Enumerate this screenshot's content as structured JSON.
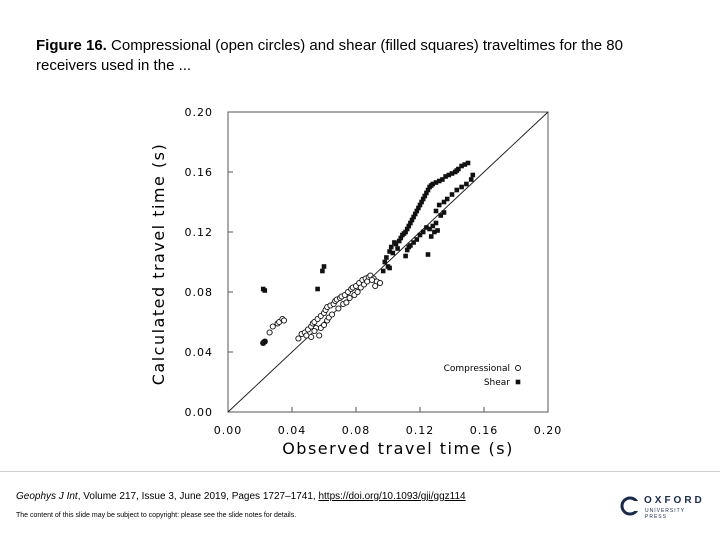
{
  "slide": {
    "title_label": "Figure 16.",
    "title_text": "Compressional (open circles) and shear (filled squares) traveltimes for the 80 receivers used in the ...",
    "citation_journal": "Geophys J Int",
    "citation_text": ", Volume 217, Issue 3, June 2019, Pages 1727–1741, ",
    "citation_link": "https://doi.org/10.1093/gji/ggz114",
    "copyright": "The content of this slide may be subject to copyright: please see the slide notes for details.",
    "logo_line1": "OXFORD",
    "logo_line2": "UNIVERSITY PRESS"
  },
  "chart_data": {
    "type": "scatter",
    "title": "",
    "xlabel": "Observed travel time (s)",
    "ylabel": "Calculated travel time (s)",
    "xlim": [
      0,
      0.2
    ],
    "ylim": [
      0,
      0.2
    ],
    "xticks": [
      "0.00",
      "0.04",
      "0.08",
      "0.12",
      "0.16",
      "0.20"
    ],
    "yticks": [
      "0.00",
      "0.04",
      "0.08",
      "0.12",
      "0.16",
      "0.20"
    ],
    "reference_line": "y = x",
    "legend_position": "bottom-right",
    "series": [
      {
        "name": "Compressional",
        "marker": "open-circle",
        "points": [
          [
            0.022,
            0.046
          ],
          [
            0.023,
            0.047
          ],
          [
            0.026,
            0.053
          ],
          [
            0.028,
            0.057
          ],
          [
            0.031,
            0.059
          ],
          [
            0.032,
            0.06
          ],
          [
            0.034,
            0.062
          ],
          [
            0.035,
            0.061
          ],
          [
            0.044,
            0.049
          ],
          [
            0.046,
            0.052
          ],
          [
            0.048,
            0.053
          ],
          [
            0.05,
            0.055
          ],
          [
            0.052,
            0.057
          ],
          [
            0.053,
            0.059
          ],
          [
            0.054,
            0.06
          ],
          [
            0.056,
            0.062
          ],
          [
            0.058,
            0.064
          ],
          [
            0.06,
            0.066
          ],
          [
            0.061,
            0.068
          ],
          [
            0.062,
            0.07
          ],
          [
            0.064,
            0.071
          ],
          [
            0.066,
            0.072
          ],
          [
            0.067,
            0.074
          ],
          [
            0.068,
            0.075
          ],
          [
            0.07,
            0.076
          ],
          [
            0.071,
            0.077
          ],
          [
            0.073,
            0.078
          ],
          [
            0.075,
            0.08
          ],
          [
            0.077,
            0.082
          ],
          [
            0.078,
            0.083
          ],
          [
            0.08,
            0.084
          ],
          [
            0.082,
            0.086
          ],
          [
            0.084,
            0.088
          ],
          [
            0.086,
            0.089
          ],
          [
            0.088,
            0.09
          ],
          [
            0.089,
            0.091
          ],
          [
            0.091,
            0.089
          ],
          [
            0.093,
            0.087
          ],
          [
            0.095,
            0.086
          ],
          [
            0.058,
            0.056
          ],
          [
            0.06,
            0.058
          ],
          [
            0.062,
            0.061
          ],
          [
            0.057,
            0.051
          ],
          [
            0.055,
            0.056
          ],
          [
            0.054,
            0.054
          ],
          [
            0.063,
            0.063
          ],
          [
            0.065,
            0.065
          ],
          [
            0.069,
            0.069
          ],
          [
            0.072,
            0.072
          ],
          [
            0.052,
            0.05
          ],
          [
            0.074,
            0.073
          ],
          [
            0.076,
            0.076
          ],
          [
            0.079,
            0.078
          ],
          [
            0.081,
            0.08
          ],
          [
            0.083,
            0.083
          ],
          [
            0.085,
            0.085
          ],
          [
            0.087,
            0.087
          ],
          [
            0.09,
            0.088
          ],
          [
            0.092,
            0.084
          ],
          [
            0.049,
            0.051
          ]
        ]
      },
      {
        "name": "Shear",
        "marker": "filled-square",
        "points": [
          [
            0.022,
            0.082
          ],
          [
            0.023,
            0.081
          ],
          [
            0.022,
            0.046
          ],
          [
            0.023,
            0.047
          ],
          [
            0.056,
            0.082
          ],
          [
            0.059,
            0.094
          ],
          [
            0.06,
            0.097
          ],
          [
            0.101,
            0.107
          ],
          [
            0.102,
            0.11
          ],
          [
            0.103,
            0.106
          ],
          [
            0.104,
            0.113
          ],
          [
            0.105,
            0.112
          ],
          [
            0.106,
            0.109
          ],
          [
            0.107,
            0.114
          ],
          [
            0.108,
            0.116
          ],
          [
            0.109,
            0.118
          ],
          [
            0.11,
            0.119
          ],
          [
            0.111,
            0.12
          ],
          [
            0.112,
            0.122
          ],
          [
            0.113,
            0.124
          ],
          [
            0.114,
            0.126
          ],
          [
            0.115,
            0.128
          ],
          [
            0.116,
            0.13
          ],
          [
            0.117,
            0.132
          ],
          [
            0.118,
            0.134
          ],
          [
            0.119,
            0.136
          ],
          [
            0.12,
            0.138
          ],
          [
            0.121,
            0.14
          ],
          [
            0.122,
            0.142
          ],
          [
            0.123,
            0.144
          ],
          [
            0.124,
            0.146
          ],
          [
            0.125,
            0.148
          ],
          [
            0.126,
            0.15
          ],
          [
            0.127,
            0.151
          ],
          [
            0.128,
            0.152
          ],
          [
            0.13,
            0.153
          ],
          [
            0.132,
            0.154
          ],
          [
            0.134,
            0.155
          ],
          [
            0.136,
            0.157
          ],
          [
            0.138,
            0.158
          ],
          [
            0.14,
            0.159
          ],
          [
            0.142,
            0.16
          ],
          [
            0.143,
            0.161
          ],
          [
            0.144,
            0.162
          ],
          [
            0.146,
            0.164
          ],
          [
            0.148,
            0.165
          ],
          [
            0.15,
            0.166
          ],
          [
            0.153,
            0.158
          ],
          [
            0.13,
            0.134
          ],
          [
            0.132,
            0.138
          ],
          [
            0.135,
            0.14
          ],
          [
            0.137,
            0.142
          ],
          [
            0.14,
            0.145
          ],
          [
            0.143,
            0.148
          ],
          [
            0.146,
            0.15
          ],
          [
            0.149,
            0.152
          ],
          [
            0.152,
            0.155
          ],
          [
            0.12,
            0.118
          ],
          [
            0.122,
            0.12
          ],
          [
            0.124,
            0.123
          ],
          [
            0.126,
            0.122
          ],
          [
            0.128,
            0.124
          ],
          [
            0.13,
            0.126
          ],
          [
            0.097,
            0.094
          ],
          [
            0.098,
            0.1
          ],
          [
            0.099,
            0.103
          ],
          [
            0.1,
            0.097
          ],
          [
            0.101,
            0.096
          ],
          [
            0.111,
            0.104
          ],
          [
            0.112,
            0.108
          ],
          [
            0.113,
            0.11
          ],
          [
            0.114,
            0.111
          ],
          [
            0.116,
            0.113
          ],
          [
            0.118,
            0.115
          ],
          [
            0.125,
            0.105
          ],
          [
            0.127,
            0.117
          ],
          [
            0.129,
            0.12
          ],
          [
            0.131,
            0.121
          ],
          [
            0.133,
            0.131
          ],
          [
            0.135,
            0.133
          ]
        ]
      }
    ]
  }
}
